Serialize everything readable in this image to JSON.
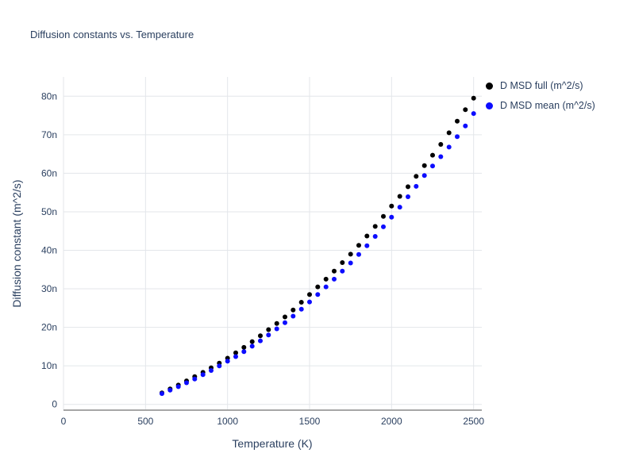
{
  "chart_data": {
    "type": "scatter",
    "title": "Diffusion constants vs. Temperature",
    "xlabel": "Temperature (K)",
    "ylabel": "Diffusion constant (m^2/s)",
    "xlim": [
      0,
      2550
    ],
    "ylim": [
      -1.5,
      85
    ],
    "grid": true,
    "legend_position": "top-right",
    "y_unit_suffix": "n",
    "x_tick_values": [
      0,
      500,
      1000,
      1500,
      2000,
      2500
    ],
    "x_tick_labels": [
      "0",
      "500",
      "1000",
      "1500",
      "2000",
      "2500"
    ],
    "y_tick_values": [
      0,
      10,
      20,
      30,
      40,
      50,
      60,
      70,
      80
    ],
    "y_tick_labels": [
      "0",
      "10n",
      "20n",
      "30n",
      "40n",
      "50n",
      "60n",
      "70n",
      "80n"
    ],
    "x": [
      600,
      650,
      700,
      750,
      800,
      850,
      900,
      950,
      1000,
      1050,
      1100,
      1150,
      1200,
      1250,
      1300,
      1350,
      1400,
      1450,
      1500,
      1550,
      1600,
      1650,
      1700,
      1750,
      1800,
      1850,
      1900,
      1950,
      2000,
      2050,
      2100,
      2150,
      2200,
      2250,
      2300,
      2350,
      2400,
      2450,
      2500
    ],
    "series": [
      {
        "name": "D MSD full (m^2/s)",
        "color": "#000000",
        "values": [
          3.0,
          4.0,
          5.0,
          6.1,
          7.2,
          8.3,
          9.5,
          10.7,
          12.0,
          13.4,
          14.8,
          16.3,
          17.8,
          19.4,
          21.0,
          22.7,
          24.5,
          26.5,
          28.5,
          30.5,
          32.5,
          34.6,
          36.8,
          39.0,
          41.3,
          43.7,
          46.2,
          48.8,
          51.5,
          54.0,
          56.5,
          59.2,
          62.0,
          64.7,
          67.5,
          70.5,
          73.5,
          76.5,
          79.5
        ]
      },
      {
        "name": "D MSD mean (m^2/s)",
        "color": "#0d0dff",
        "values": [
          2.8,
          3.7,
          4.6,
          5.6,
          6.6,
          7.7,
          8.8,
          10.0,
          11.2,
          12.4,
          13.7,
          15.1,
          16.5,
          18.0,
          19.6,
          21.2,
          22.9,
          24.7,
          26.6,
          28.5,
          30.5,
          32.5,
          34.6,
          36.7,
          38.9,
          41.2,
          43.6,
          46.1,
          48.6,
          51.2,
          53.9,
          56.6,
          59.4,
          61.9,
          64.3,
          66.8,
          69.5,
          72.3,
          75.5
        ]
      }
    ]
  }
}
